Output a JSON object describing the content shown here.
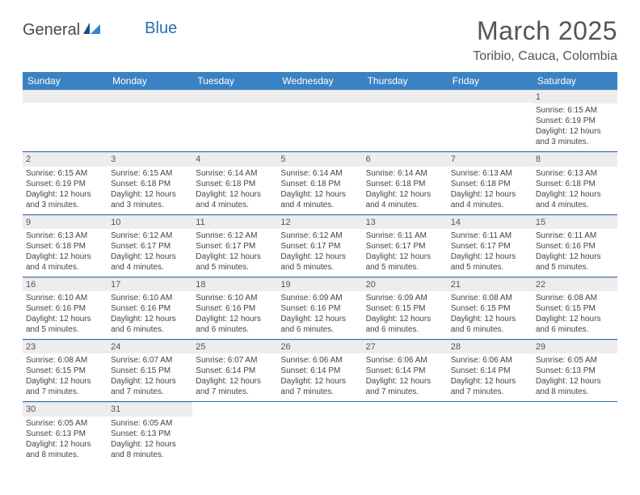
{
  "branding": {
    "logo_word1": "General",
    "logo_word2": "Blue",
    "logo_text_color": "#4a4a4a",
    "logo_accent_color": "#2b6cb0"
  },
  "header": {
    "month_title": "March 2025",
    "location": "Toribio, Cauca, Colombia",
    "title_color": "#555555",
    "title_fontsize": 32
  },
  "calendar": {
    "header_bg": "#3b82c4",
    "header_fg": "#ffffff",
    "row_border_color": "#2b6cb0",
    "daynum_bg": "#ededed",
    "cell_fg": "#444444",
    "daynames": [
      "Sunday",
      "Monday",
      "Tuesday",
      "Wednesday",
      "Thursday",
      "Friday",
      "Saturday"
    ],
    "weeks": [
      [
        null,
        null,
        null,
        null,
        null,
        null,
        {
          "n": "1",
          "sr": "Sunrise: 6:15 AM",
          "ss": "Sunset: 6:19 PM",
          "d1": "Daylight: 12 hours",
          "d2": "and 3 minutes."
        }
      ],
      [
        {
          "n": "2",
          "sr": "Sunrise: 6:15 AM",
          "ss": "Sunset: 6:19 PM",
          "d1": "Daylight: 12 hours",
          "d2": "and 3 minutes."
        },
        {
          "n": "3",
          "sr": "Sunrise: 6:15 AM",
          "ss": "Sunset: 6:18 PM",
          "d1": "Daylight: 12 hours",
          "d2": "and 3 minutes."
        },
        {
          "n": "4",
          "sr": "Sunrise: 6:14 AM",
          "ss": "Sunset: 6:18 PM",
          "d1": "Daylight: 12 hours",
          "d2": "and 4 minutes."
        },
        {
          "n": "5",
          "sr": "Sunrise: 6:14 AM",
          "ss": "Sunset: 6:18 PM",
          "d1": "Daylight: 12 hours",
          "d2": "and 4 minutes."
        },
        {
          "n": "6",
          "sr": "Sunrise: 6:14 AM",
          "ss": "Sunset: 6:18 PM",
          "d1": "Daylight: 12 hours",
          "d2": "and 4 minutes."
        },
        {
          "n": "7",
          "sr": "Sunrise: 6:13 AM",
          "ss": "Sunset: 6:18 PM",
          "d1": "Daylight: 12 hours",
          "d2": "and 4 minutes."
        },
        {
          "n": "8",
          "sr": "Sunrise: 6:13 AM",
          "ss": "Sunset: 6:18 PM",
          "d1": "Daylight: 12 hours",
          "d2": "and 4 minutes."
        }
      ],
      [
        {
          "n": "9",
          "sr": "Sunrise: 6:13 AM",
          "ss": "Sunset: 6:18 PM",
          "d1": "Daylight: 12 hours",
          "d2": "and 4 minutes."
        },
        {
          "n": "10",
          "sr": "Sunrise: 6:12 AM",
          "ss": "Sunset: 6:17 PM",
          "d1": "Daylight: 12 hours",
          "d2": "and 4 minutes."
        },
        {
          "n": "11",
          "sr": "Sunrise: 6:12 AM",
          "ss": "Sunset: 6:17 PM",
          "d1": "Daylight: 12 hours",
          "d2": "and 5 minutes."
        },
        {
          "n": "12",
          "sr": "Sunrise: 6:12 AM",
          "ss": "Sunset: 6:17 PM",
          "d1": "Daylight: 12 hours",
          "d2": "and 5 minutes."
        },
        {
          "n": "13",
          "sr": "Sunrise: 6:11 AM",
          "ss": "Sunset: 6:17 PM",
          "d1": "Daylight: 12 hours",
          "d2": "and 5 minutes."
        },
        {
          "n": "14",
          "sr": "Sunrise: 6:11 AM",
          "ss": "Sunset: 6:17 PM",
          "d1": "Daylight: 12 hours",
          "d2": "and 5 minutes."
        },
        {
          "n": "15",
          "sr": "Sunrise: 6:11 AM",
          "ss": "Sunset: 6:16 PM",
          "d1": "Daylight: 12 hours",
          "d2": "and 5 minutes."
        }
      ],
      [
        {
          "n": "16",
          "sr": "Sunrise: 6:10 AM",
          "ss": "Sunset: 6:16 PM",
          "d1": "Daylight: 12 hours",
          "d2": "and 5 minutes."
        },
        {
          "n": "17",
          "sr": "Sunrise: 6:10 AM",
          "ss": "Sunset: 6:16 PM",
          "d1": "Daylight: 12 hours",
          "d2": "and 6 minutes."
        },
        {
          "n": "18",
          "sr": "Sunrise: 6:10 AM",
          "ss": "Sunset: 6:16 PM",
          "d1": "Daylight: 12 hours",
          "d2": "and 6 minutes."
        },
        {
          "n": "19",
          "sr": "Sunrise: 6:09 AM",
          "ss": "Sunset: 6:16 PM",
          "d1": "Daylight: 12 hours",
          "d2": "and 6 minutes."
        },
        {
          "n": "20",
          "sr": "Sunrise: 6:09 AM",
          "ss": "Sunset: 6:15 PM",
          "d1": "Daylight: 12 hours",
          "d2": "and 6 minutes."
        },
        {
          "n": "21",
          "sr": "Sunrise: 6:08 AM",
          "ss": "Sunset: 6:15 PM",
          "d1": "Daylight: 12 hours",
          "d2": "and 6 minutes."
        },
        {
          "n": "22",
          "sr": "Sunrise: 6:08 AM",
          "ss": "Sunset: 6:15 PM",
          "d1": "Daylight: 12 hours",
          "d2": "and 6 minutes."
        }
      ],
      [
        {
          "n": "23",
          "sr": "Sunrise: 6:08 AM",
          "ss": "Sunset: 6:15 PM",
          "d1": "Daylight: 12 hours",
          "d2": "and 7 minutes."
        },
        {
          "n": "24",
          "sr": "Sunrise: 6:07 AM",
          "ss": "Sunset: 6:15 PM",
          "d1": "Daylight: 12 hours",
          "d2": "and 7 minutes."
        },
        {
          "n": "25",
          "sr": "Sunrise: 6:07 AM",
          "ss": "Sunset: 6:14 PM",
          "d1": "Daylight: 12 hours",
          "d2": "and 7 minutes."
        },
        {
          "n": "26",
          "sr": "Sunrise: 6:06 AM",
          "ss": "Sunset: 6:14 PM",
          "d1": "Daylight: 12 hours",
          "d2": "and 7 minutes."
        },
        {
          "n": "27",
          "sr": "Sunrise: 6:06 AM",
          "ss": "Sunset: 6:14 PM",
          "d1": "Daylight: 12 hours",
          "d2": "and 7 minutes."
        },
        {
          "n": "28",
          "sr": "Sunrise: 6:06 AM",
          "ss": "Sunset: 6:14 PM",
          "d1": "Daylight: 12 hours",
          "d2": "and 7 minutes."
        },
        {
          "n": "29",
          "sr": "Sunrise: 6:05 AM",
          "ss": "Sunset: 6:13 PM",
          "d1": "Daylight: 12 hours",
          "d2": "and 8 minutes."
        }
      ],
      [
        {
          "n": "30",
          "sr": "Sunrise: 6:05 AM",
          "ss": "Sunset: 6:13 PM",
          "d1": "Daylight: 12 hours",
          "d2": "and 8 minutes."
        },
        {
          "n": "31",
          "sr": "Sunrise: 6:05 AM",
          "ss": "Sunset: 6:13 PM",
          "d1": "Daylight: 12 hours",
          "d2": "and 8 minutes."
        },
        null,
        null,
        null,
        null,
        null
      ]
    ]
  }
}
